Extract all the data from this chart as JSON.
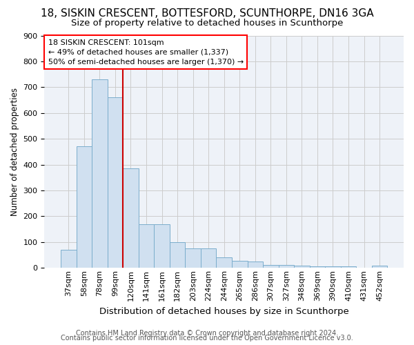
{
  "title1": "18, SISKIN CRESCENT, BOTTESFORD, SCUNTHORPE, DN16 3GA",
  "title2": "Size of property relative to detached houses in Scunthorpe",
  "xlabel": "Distribution of detached houses by size in Scunthorpe",
  "ylabel": "Number of detached properties",
  "footer1": "Contains HM Land Registry data © Crown copyright and database right 2024.",
  "footer2": "Contains public sector information licensed under the Open Government Licence v3.0.",
  "bin_labels": [
    "37sqm",
    "58sqm",
    "78sqm",
    "99sqm",
    "120sqm",
    "141sqm",
    "161sqm",
    "182sqm",
    "203sqm",
    "224sqm",
    "244sqm",
    "265sqm",
    "286sqm",
    "307sqm",
    "327sqm",
    "348sqm",
    "369sqm",
    "390sqm",
    "410sqm",
    "431sqm",
    "452sqm"
  ],
  "bar_values": [
    70,
    470,
    730,
    660,
    385,
    170,
    170,
    100,
    75,
    75,
    40,
    27,
    25,
    12,
    12,
    10,
    5,
    5,
    5,
    2,
    8
  ],
  "bar_color": "#d0e0f0",
  "bar_edge_color": "#7aadcc",
  "highlight_color": "#cc0000",
  "red_line_x": 3.5,
  "annotation_text": "18 SISKIN CRESCENT: 101sqm\n← 49% of detached houses are smaller (1,337)\n50% of semi-detached houses are larger (1,370) →",
  "ylim": [
    0,
    900
  ],
  "yticks": [
    0,
    100,
    200,
    300,
    400,
    500,
    600,
    700,
    800,
    900
  ],
  "grid_color": "#cccccc",
  "bg_color": "#eef2f8",
  "title1_fontsize": 11,
  "title2_fontsize": 9.5,
  "xlabel_fontsize": 9.5,
  "ylabel_fontsize": 8.5,
  "tick_fontsize": 8,
  "annot_fontsize": 8,
  "footer_fontsize": 7
}
